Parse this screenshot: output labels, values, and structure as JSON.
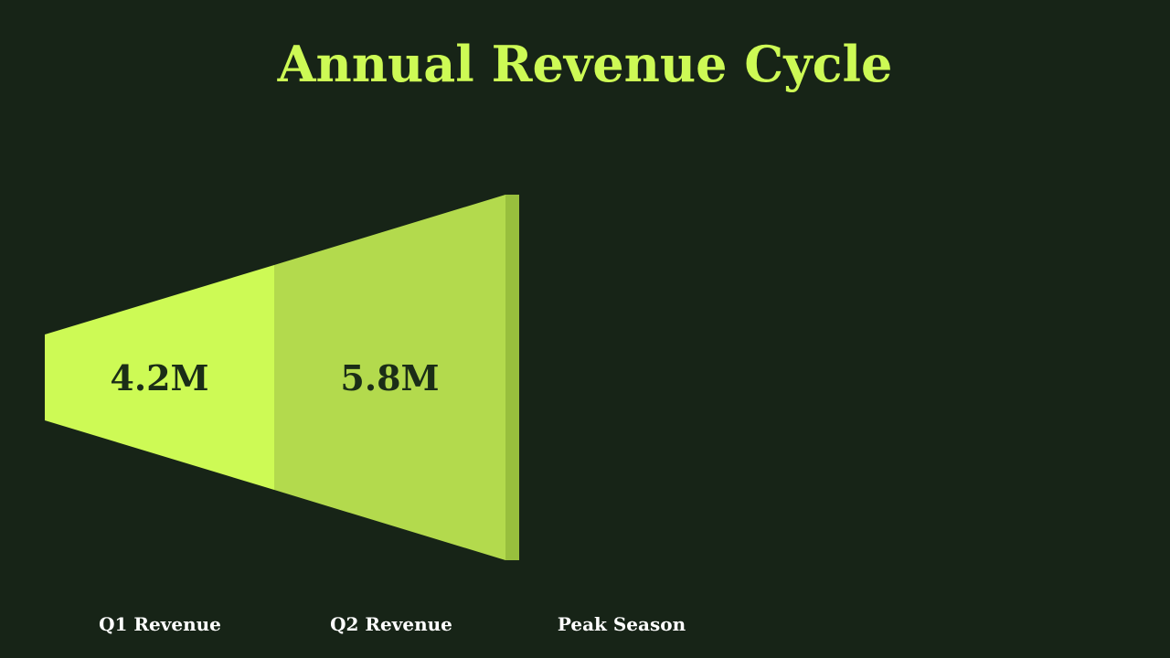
{
  "title": "Annual Revenue Cycle",
  "colors": {
    "background": "#172417",
    "title": "#cdfa55",
    "segment_q1": "#cdfa55",
    "segment_q2": "#b3da4d",
    "segment_partial": "#98bf3d",
    "value_text": "#1b2d17",
    "category_text": "#ffffff",
    "category_text_faded": "#2c3a27"
  },
  "chart_data": {
    "type": "bar",
    "title": "Annual Revenue Cycle",
    "categories": [
      "Q1 Revenue",
      "Q2 Revenue",
      "Peak Season"
    ],
    "values": [
      4.2,
      5.8,
      null
    ],
    "value_labels": [
      "4.2M",
      "5.8M",
      ""
    ],
    "unit": "M",
    "grid": false,
    "legend": "none"
  }
}
